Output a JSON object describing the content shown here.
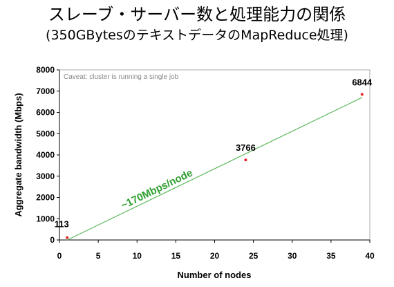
{
  "slide": {
    "title": "スレーブ・サーバー数と処理能力の関係",
    "subtitle": "(350GBytesのテキストデータのMapReduce処理)"
  },
  "chart_data": {
    "type": "scatter",
    "xlabel": "Number of nodes",
    "ylabel": "Aggregate bandwidth (Mbps)",
    "xlim": [
      0,
      40
    ],
    "ylim": [
      0,
      8000
    ],
    "x_ticks": [
      0,
      5,
      10,
      15,
      20,
      25,
      30,
      35,
      40
    ],
    "y_ticks": [
      0,
      1000,
      2000,
      3000,
      4000,
      5000,
      6000,
      7000,
      8000
    ],
    "grid": false,
    "points": [
      {
        "x": 1,
        "y": 113,
        "label": "113"
      },
      {
        "x": 24,
        "y": 3766,
        "label": "3766"
      },
      {
        "x": 39,
        "y": 6844,
        "label": "6844"
      }
    ],
    "trendline": {
      "x": [
        1,
        39
      ],
      "y": [
        0,
        6700
      ],
      "label": "~170Mbps/node"
    },
    "annotation": "Caveat: cluster is running a single job",
    "colors": {
      "point": "#e8262a",
      "trendline": "#5cb85c",
      "trend_label": "#2e9e2e",
      "frame": "#aaaaaa"
    }
  }
}
